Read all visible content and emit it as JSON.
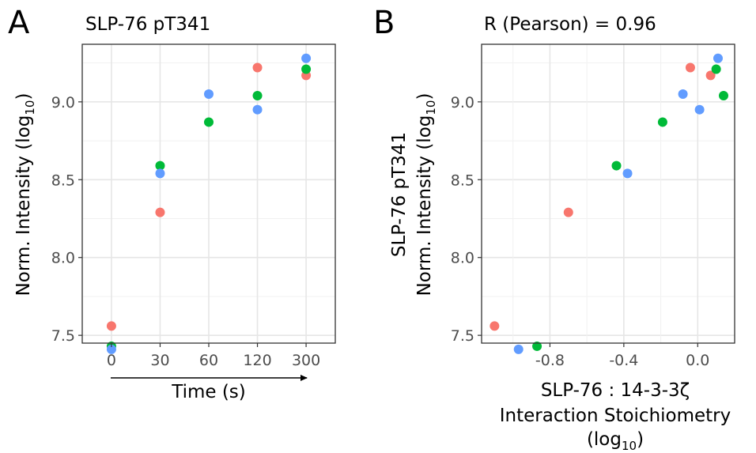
{
  "colors": {
    "series1": "#F8766D",
    "series2": "#00BA38",
    "series3": "#619CFF"
  },
  "panel_a": {
    "letter": "A",
    "title": "SLP-76 pT341",
    "ylabel": "Norm. Intensity (log",
    "ylabel_sub": "10",
    "ylabel_end": ")",
    "xlabel": "Time (s)"
  },
  "panel_b": {
    "letter": "B",
    "title": "R (Pearson) = 0.96",
    "ylabel_line1": "SLP-76 pT341",
    "ylabel_line2": "Norm. Intensity (log",
    "ylabel_sub": "10",
    "ylabel_end": ")",
    "xlabel_line1": "SLP-76 : 14-3-3ζ",
    "xlabel_line2": "Interaction Stoichiometry",
    "xlabel_line3": "(log",
    "xlabel_sub": "10",
    "xlabel_end": ")"
  },
  "chart_data": [
    {
      "type": "scatter",
      "panel": "A",
      "title": "SLP-76 pT341",
      "xlabel": "Time (s)",
      "ylabel": "Norm. Intensity (log10)",
      "x_scale": "categorical",
      "categories": [
        "0",
        "30",
        "60",
        "120",
        "300"
      ],
      "ylim": [
        7.45,
        9.37
      ],
      "yticks": [
        7.5,
        8.0,
        8.5,
        9.0
      ],
      "grid": true,
      "legend": "none",
      "series": [
        {
          "color": "#F8766D",
          "x": [
            "0",
            "30",
            "120",
            "300"
          ],
          "y": [
            7.56,
            8.29,
            9.22,
            9.17
          ]
        },
        {
          "color": "#00BA38",
          "x": [
            "0",
            "30",
            "60",
            "120",
            "300"
          ],
          "y": [
            7.43,
            8.59,
            8.87,
            9.04,
            9.21
          ]
        },
        {
          "color": "#619CFF",
          "x": [
            "0",
            "30",
            "60",
            "120",
            "300"
          ],
          "y": [
            7.41,
            8.54,
            9.05,
            8.95,
            9.28
          ]
        }
      ]
    },
    {
      "type": "scatter",
      "panel": "B",
      "title": "R (Pearson) = 0.96",
      "xlabel": "SLP-76 : 14-3-3ζ Interaction Stoichiometry (log10)",
      "ylabel": "SLP-76 pT341 Norm. Intensity (log10)",
      "xlim": [
        -1.17,
        0.2
      ],
      "ylim": [
        7.45,
        9.37
      ],
      "xticks": [
        -0.8,
        -0.4,
        0.0
      ],
      "xtick_labels": [
        "-0.8",
        "-0.4",
        "0.0"
      ],
      "yticks": [
        7.5,
        8.0,
        8.5,
        9.0
      ],
      "grid": true,
      "legend": "none",
      "series": [
        {
          "color": "#F8766D",
          "x": [
            -1.1,
            -0.7,
            -0.04,
            0.07
          ],
          "y": [
            7.56,
            8.29,
            9.22,
            9.17
          ]
        },
        {
          "color": "#00BA38",
          "x": [
            -0.87,
            -0.44,
            -0.19,
            0.1,
            0.14
          ],
          "y": [
            7.43,
            8.59,
            8.87,
            9.21,
            9.04
          ]
        },
        {
          "color": "#619CFF",
          "x": [
            -0.97,
            -0.38,
            -0.08,
            0.11,
            0.01
          ],
          "y": [
            7.41,
            8.54,
            9.05,
            9.28,
            8.95
          ]
        }
      ]
    }
  ]
}
